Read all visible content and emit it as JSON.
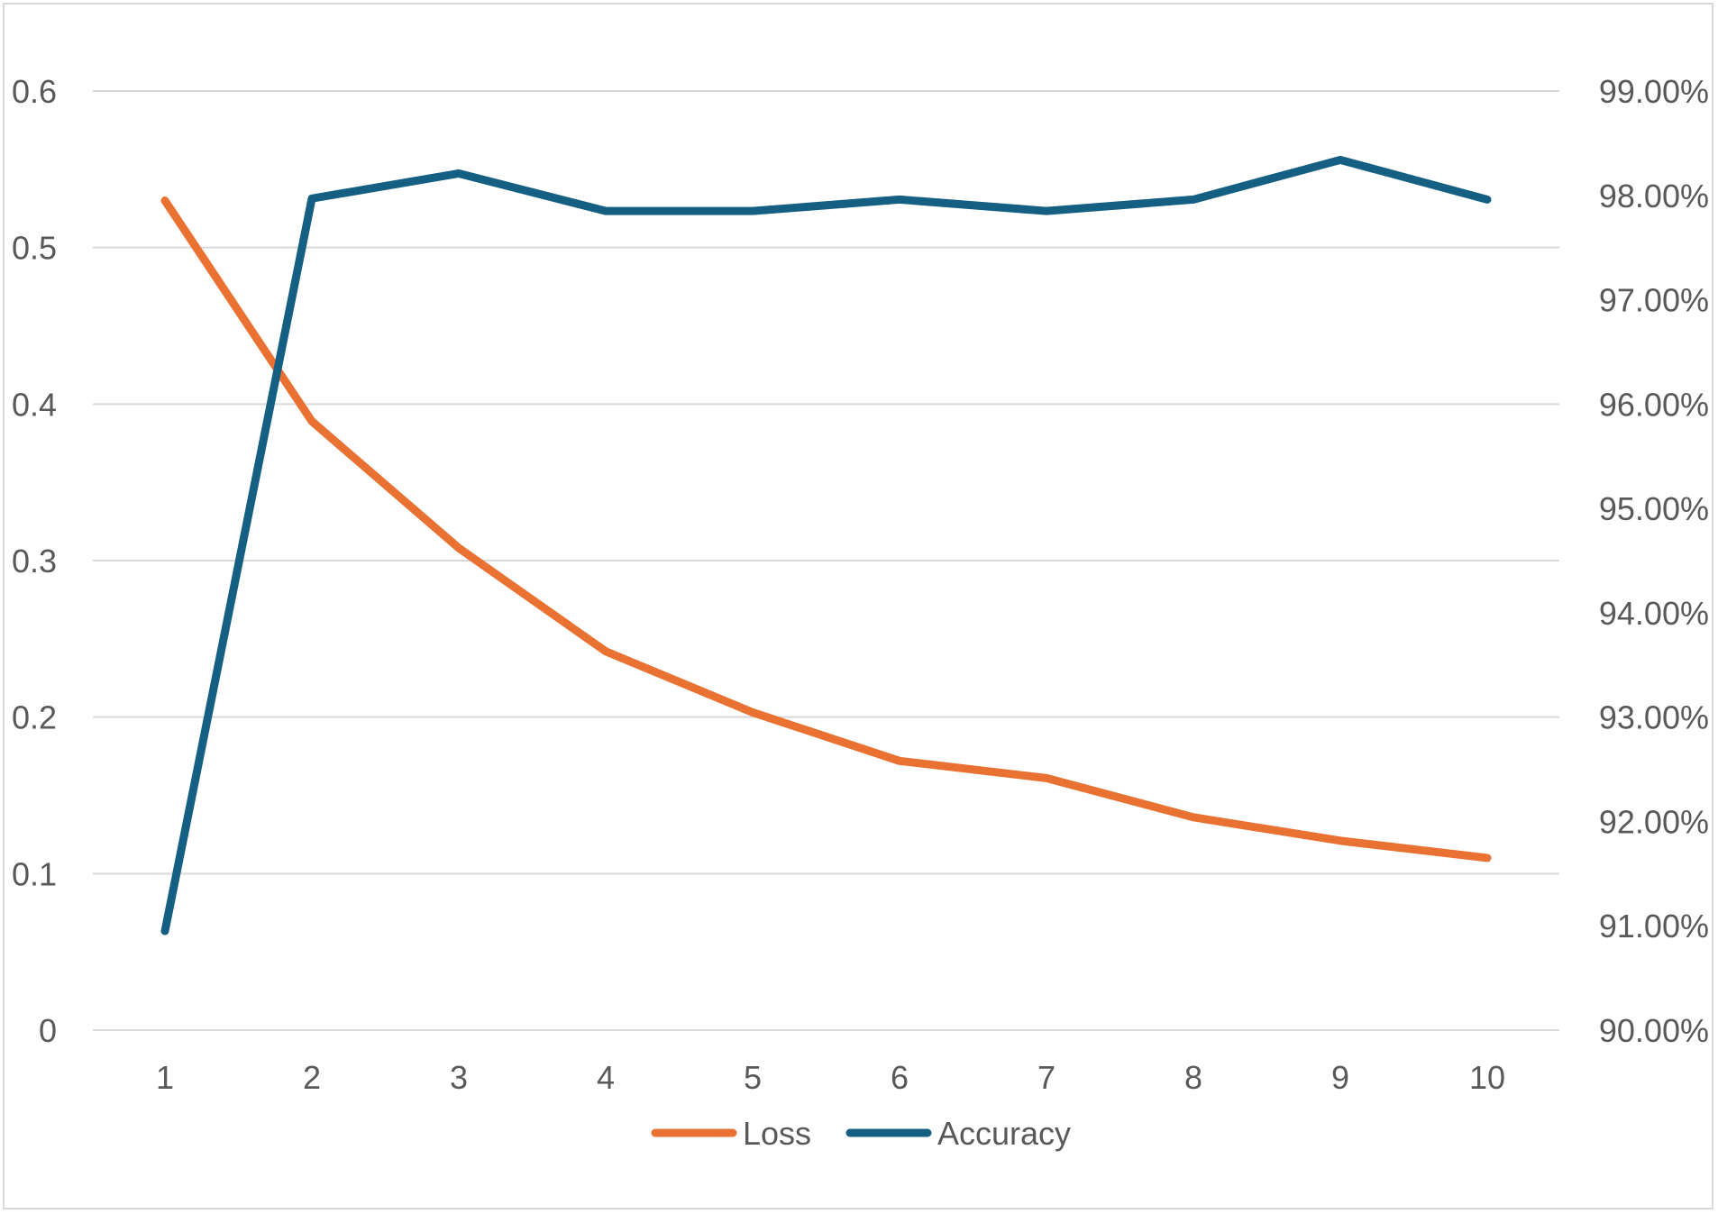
{
  "chart_data": {
    "type": "line",
    "title": "",
    "xlabel": "",
    "ylabel": "",
    "x": [
      1,
      2,
      3,
      4,
      5,
      6,
      7,
      8,
      9,
      10
    ],
    "x_tick_labels": [
      "1",
      "2",
      "3",
      "4",
      "5",
      "6",
      "7",
      "8",
      "9",
      "10"
    ],
    "y_left": {
      "lim": [
        0,
        0.6
      ],
      "ticks": [
        0,
        0.1,
        0.2,
        0.3,
        0.4,
        0.5,
        0.6
      ],
      "tick_labels": [
        "0",
        "0.1",
        "0.2",
        "0.3",
        "0.4",
        "0.5",
        "0.6"
      ]
    },
    "y_right": {
      "lim": [
        90,
        99
      ],
      "ticks": [
        90,
        91,
        92,
        93,
        94,
        95,
        96,
        97,
        98,
        99
      ],
      "tick_labels": [
        "90.00%",
        "91.00%",
        "92.00%",
        "93.00%",
        "94.00%",
        "95.00%",
        "96.00%",
        "97.00%",
        "98.00%",
        "99.00%"
      ]
    },
    "series": [
      {
        "name": "Loss",
        "axis": "left",
        "color": "#E97132",
        "values": [
          0.53,
          0.389,
          0.308,
          0.242,
          0.203,
          0.172,
          0.161,
          0.136,
          0.121,
          0.11
        ]
      },
      {
        "name": "Accuracy",
        "axis": "right",
        "color": "#156082",
        "values": [
          90.95,
          97.97,
          98.21,
          97.85,
          97.85,
          97.96,
          97.85,
          97.96,
          98.34,
          97.96
        ]
      }
    ],
    "grid": true,
    "legend_position": "bottom"
  }
}
